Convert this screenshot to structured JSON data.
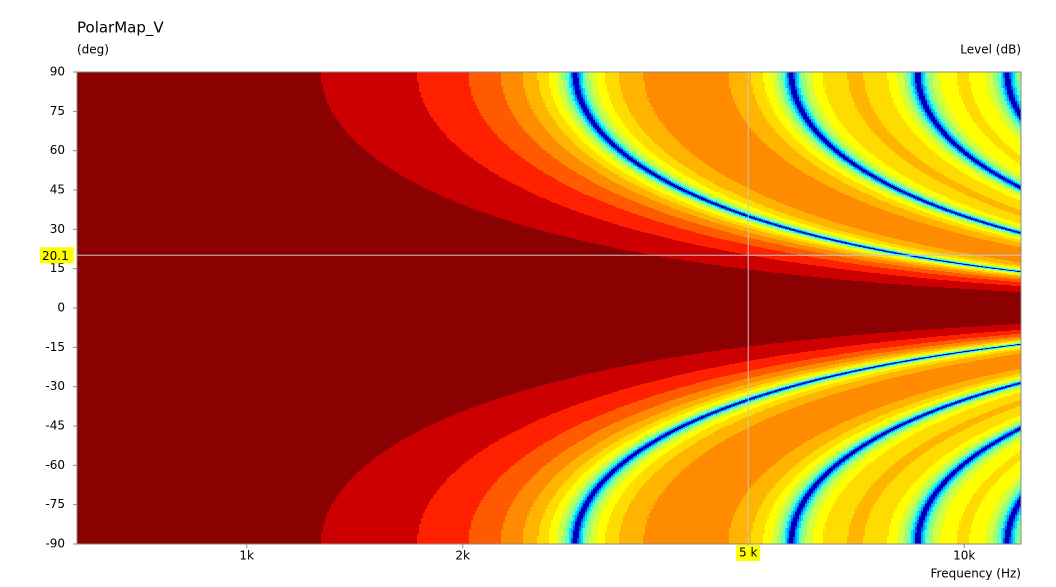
{
  "chart_data": {
    "type": "heatmap",
    "title": "PolarMap_V",
    "y_unit_label": "(deg)",
    "level_label": "Level  (dB)",
    "x_label": "Frequency  (Hz)",
    "xscale": "log",
    "xlim": [
      580,
      12000
    ],
    "ylim": [
      -90,
      90
    ],
    "xticks": [
      {
        "value": 1000,
        "label": "1k"
      },
      {
        "value": 2000,
        "label": "2k"
      },
      {
        "value": 5000,
        "label": "5k"
      },
      {
        "value": 10000,
        "label": "10k"
      }
    ],
    "yticks": [
      90,
      75,
      60,
      45,
      30,
      15,
      0,
      -15,
      -30,
      -45,
      -60,
      -75,
      -90
    ],
    "colors": [
      "#8b0000",
      "#cc0000",
      "#ff2000",
      "#ff5a00",
      "#ff8c00",
      "#ffb400",
      "#ffdc00",
      "#ffff00",
      "#d4ff3c",
      "#9cff7c",
      "#5cffc0",
      "#00e4ff",
      "#00a4ff",
      "#0050ff",
      "#0000b4"
    ],
    "cursor": {
      "x": 5000,
      "y": 20.1,
      "x_label": "5 k",
      "y_label": "20.1"
    }
  }
}
